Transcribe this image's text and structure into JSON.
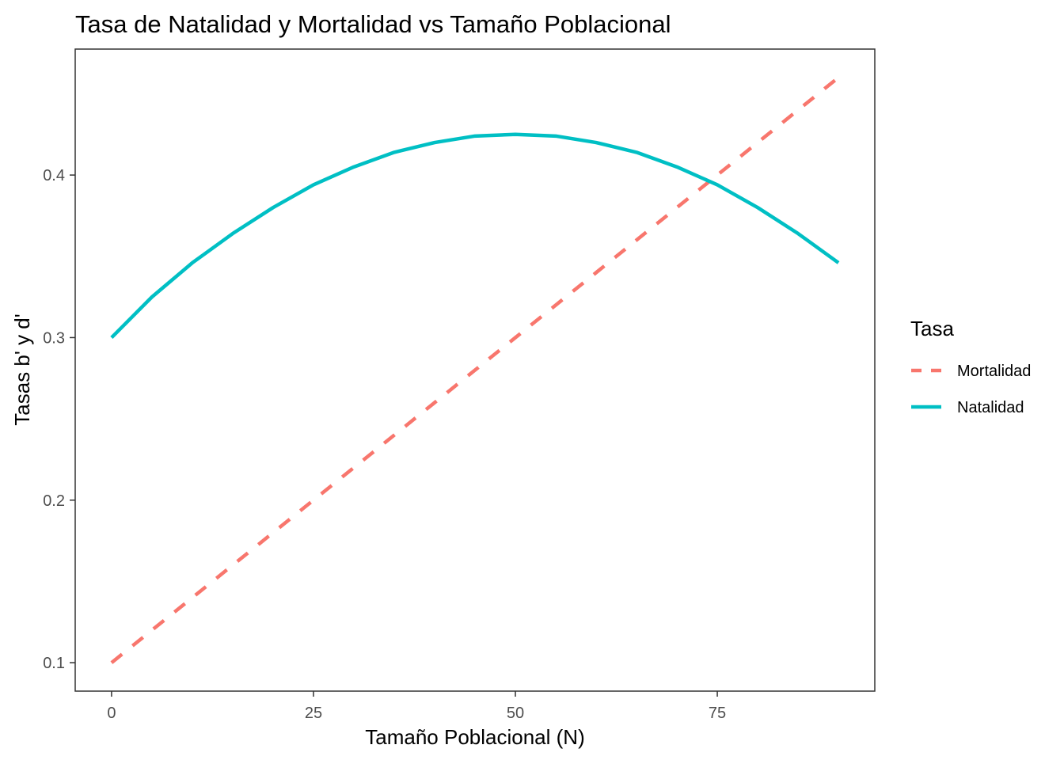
{
  "chart_data": {
    "type": "line",
    "title": "Tasa de Natalidad y Mortalidad vs Tamaño Poblacional",
    "xlabel": "Tamaño Poblacional (N)",
    "ylabel": "Tasas b' y d'",
    "xlim": [
      -4.5,
      94.5
    ],
    "ylim": [
      0.0825,
      0.4775
    ],
    "x_ticks": [
      0,
      25,
      50,
      75
    ],
    "x_tick_labels": [
      "0",
      "25",
      "50",
      "75"
    ],
    "y_ticks": [
      0.1,
      0.2,
      0.3,
      0.4
    ],
    "y_tick_labels": [
      "0.1",
      "0.2",
      "0.3",
      "0.4"
    ],
    "grid": false,
    "legend": {
      "title": "Tasa",
      "position": "right"
    },
    "series": [
      {
        "name": "Mortalidad",
        "color": "#F8766D",
        "line_style": "dashed",
        "x": [
          0,
          5,
          10,
          15,
          20,
          25,
          30,
          35,
          40,
          45,
          50,
          55,
          60,
          65,
          70,
          75,
          80,
          85,
          90
        ],
        "y": [
          0.1,
          0.12,
          0.14,
          0.16,
          0.18,
          0.2,
          0.22,
          0.24,
          0.26,
          0.28,
          0.3,
          0.32,
          0.34,
          0.36,
          0.38,
          0.4,
          0.42,
          0.44,
          0.46
        ]
      },
      {
        "name": "Natalidad",
        "color": "#00BFC4",
        "line_style": "solid",
        "x": [
          0,
          5,
          10,
          15,
          20,
          25,
          30,
          35,
          40,
          45,
          50,
          55,
          60,
          65,
          70,
          75,
          80,
          85,
          90
        ],
        "y": [
          0.3,
          0.325,
          0.346,
          0.364,
          0.38,
          0.394,
          0.405,
          0.414,
          0.42,
          0.424,
          0.425,
          0.424,
          0.42,
          0.414,
          0.405,
          0.394,
          0.38,
          0.364,
          0.346
        ]
      }
    ]
  }
}
